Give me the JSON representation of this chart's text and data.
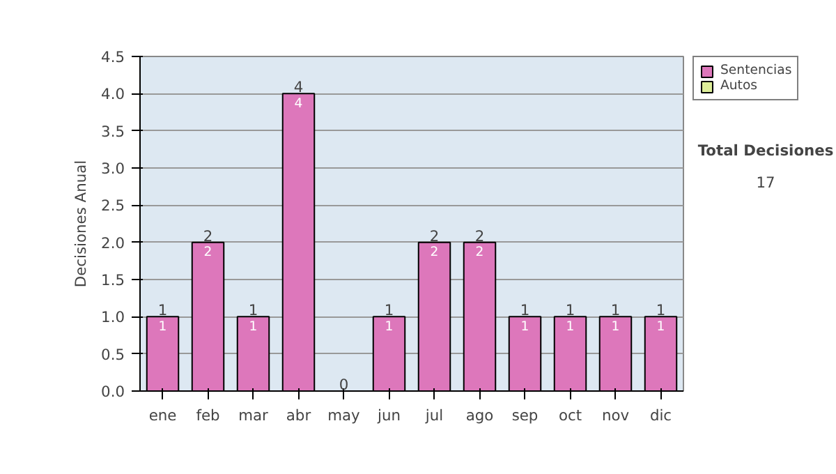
{
  "chart_data": {
    "type": "bar",
    "stacked": true,
    "ylabel": "Decisiones Anual",
    "categories": [
      "ene",
      "feb",
      "mar",
      "abr",
      "may",
      "jun",
      "jul",
      "ago",
      "sep",
      "oct",
      "nov",
      "dic"
    ],
    "series": [
      {
        "name": "Sentencias",
        "color": "#dd77bb",
        "values": [
          1,
          2,
          1,
          4,
          0,
          1,
          2,
          2,
          1,
          1,
          1,
          1
        ],
        "value_labels": [
          "1",
          "2",
          "1",
          "4",
          null,
          "1",
          "2",
          "2",
          "1",
          "1",
          "1",
          "1"
        ]
      },
      {
        "name": "Autos",
        "color": "#ddee99",
        "values": [
          0,
          0,
          0,
          0,
          0,
          0,
          0,
          0,
          0,
          0,
          0,
          0
        ]
      }
    ],
    "totals": [
      "1",
      "2",
      "1",
      "4",
      "0",
      "1",
      "2",
      "2",
      "1",
      "1",
      "1",
      "1"
    ],
    "ylim": [
      0,
      4.5
    ],
    "yticks": [
      {
        "value": 0,
        "label": "0.0"
      },
      0.5,
      {
        "value": 1,
        "label": "1.0"
      },
      1.5,
      {
        "value": 2,
        "label": "2.0"
      },
      2.5,
      {
        "value": 3,
        "label": "3.0"
      },
      3.5,
      {
        "value": 4,
        "label": "4.0"
      },
      4.5
    ],
    "grid": "y",
    "legend": "right",
    "annotations": [
      "Total Decisiones",
      "17"
    ]
  }
}
